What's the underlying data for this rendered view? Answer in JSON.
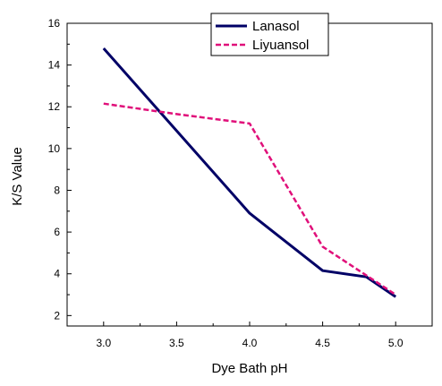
{
  "chart_data": {
    "type": "line",
    "xlabel": "Dye Bath pH",
    "ylabel": "K/S Value",
    "xlim": [
      2.75,
      5.25
    ],
    "ylim": [
      1.5,
      16
    ],
    "x_ticks": [
      "3.0",
      "3.5",
      "4.0",
      "4.5",
      "5.0"
    ],
    "x_tick_values": [
      3.0,
      3.5,
      4.0,
      4.5,
      5.0
    ],
    "y_ticks": [
      "2",
      "4",
      "6",
      "8",
      "10",
      "12",
      "14",
      "16"
    ],
    "y_tick_values": [
      2,
      4,
      6,
      8,
      10,
      12,
      14,
      16
    ],
    "grid": false,
    "legend_position": "top-right",
    "series": [
      {
        "name": "Lanasol",
        "color": "#000066",
        "style": "solid",
        "x": [
          3.0,
          4.0,
          4.5,
          4.8,
          5.0
        ],
        "y": [
          14.8,
          6.9,
          4.15,
          3.85,
          2.9
        ]
      },
      {
        "name": "Liyuansol",
        "color": "#e0107a",
        "style": "dashed",
        "x": [
          3.0,
          3.5,
          4.0,
          4.5,
          5.0
        ],
        "y": [
          12.15,
          11.65,
          11.2,
          5.3,
          3.0
        ]
      }
    ]
  }
}
